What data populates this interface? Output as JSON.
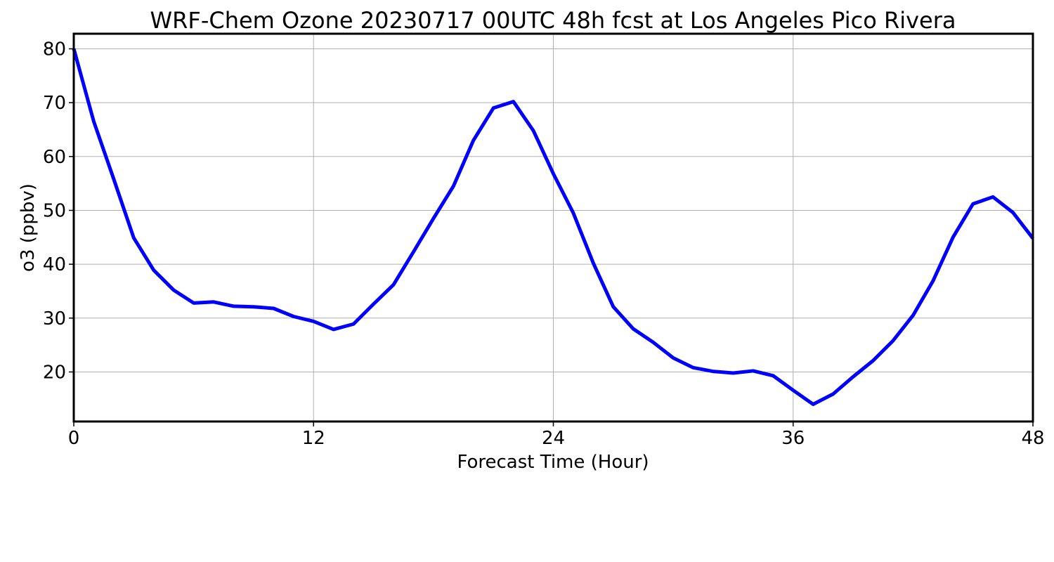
{
  "chart_data": {
    "type": "line",
    "title": "WRF-Chem Ozone  20230717 00UTC 48h fcst at Los Angeles Pico Rivera",
    "xlabel": "Forecast Time (Hour)",
    "ylabel": "o3  (ppbv)",
    "xlim": [
      0,
      48
    ],
    "ylim": [
      10.8,
      82.8
    ],
    "xticks": [
      0,
      12,
      24,
      36,
      48
    ],
    "yticks": [
      20,
      30,
      40,
      50,
      60,
      70,
      80
    ],
    "grid": true,
    "legend": "none",
    "x": [
      0,
      1,
      2,
      3,
      4,
      5,
      6,
      7,
      8,
      9,
      10,
      11,
      12,
      13,
      14,
      15,
      16,
      17,
      18,
      19,
      20,
      21,
      22,
      23,
      24,
      25,
      26,
      27,
      28,
      29,
      30,
      31,
      32,
      33,
      34,
      35,
      36,
      37,
      38,
      39,
      40,
      41,
      42,
      43,
      44,
      45,
      46,
      47,
      48
    ],
    "series": [
      {
        "color": "#0000ff",
        "values": [
          80.0,
          66.5,
          55.8,
          44.9,
          38.9,
          35.2,
          32.8,
          33.0,
          32.2,
          32.1,
          31.8,
          30.3,
          29.4,
          27.9,
          28.9,
          32.6,
          36.2,
          42.3,
          48.5,
          54.5,
          63.0,
          69.0,
          70.2,
          64.8,
          56.8,
          49.5,
          40.2,
          32.1,
          28.0,
          25.5,
          22.6,
          20.8,
          20.1,
          19.8,
          20.2,
          19.3,
          16.6,
          14.0,
          15.9,
          19.1,
          22.1,
          25.8,
          30.5,
          36.9,
          45.0,
          51.2,
          52.5,
          49.6,
          44.8
        ]
      }
    ]
  }
}
